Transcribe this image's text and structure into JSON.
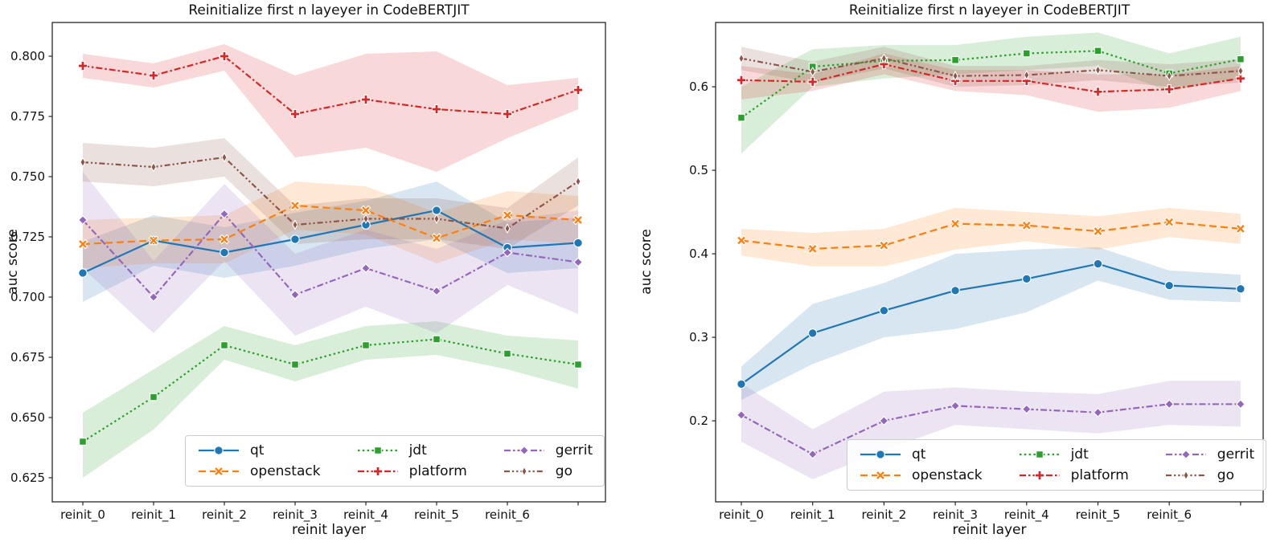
{
  "chart_data": [
    {
      "id": "left",
      "type": "line",
      "title": "Reinitialize first n layeyer in CodeBERTJIT",
      "xlabel": "reinit layer",
      "ylabel": "auc score",
      "x_categories": [
        "reinit_0",
        "reinit_1",
        "reinit_2",
        "reinit_3",
        "reinit_4",
        "reinit_5",
        "reinit_6",
        ""
      ],
      "ytick_values": [
        0.8,
        0.775,
        0.75,
        0.725,
        0.7,
        0.675,
        0.65,
        0.625
      ],
      "ytick_labels": [
        "0.800",
        "0.775",
        "0.750",
        "0.725",
        "0.700",
        "0.675",
        "0.650",
        "0.625"
      ],
      "ylim": [
        0.615,
        0.814
      ],
      "grid": false,
      "legend_position": "lower-center-inside",
      "series": [
        {
          "name": "qt",
          "color": "#1f77b4",
          "line": "solid",
          "marker": "circle",
          "values": [
            0.71,
            0.7235,
            0.7185,
            0.724,
            0.73,
            0.736,
            0.7205,
            0.7225
          ],
          "band_lo": [
            0.698,
            0.713,
            0.708,
            0.713,
            0.72,
            0.724,
            0.71,
            0.712
          ],
          "band_hi": [
            0.723,
            0.734,
            0.729,
            0.735,
            0.74,
            0.748,
            0.731,
            0.733
          ]
        },
        {
          "name": "openstack",
          "color": "#ff7f0e",
          "line": "dashed",
          "marker": "x-filled",
          "values": [
            0.722,
            0.7235,
            0.724,
            0.738,
            0.736,
            0.7245,
            0.734,
            0.732
          ],
          "band_lo": [
            0.712,
            0.714,
            0.714,
            0.728,
            0.726,
            0.714,
            0.724,
            0.722
          ],
          "band_hi": [
            0.732,
            0.733,
            0.734,
            0.748,
            0.746,
            0.735,
            0.744,
            0.742
          ]
        },
        {
          "name": "jdt",
          "color": "#2ca02c",
          "line": "dotted",
          "marker": "square",
          "values": [
            0.64,
            0.6585,
            0.68,
            0.672,
            0.68,
            0.6825,
            0.6765,
            0.672
          ],
          "band_lo": [
            0.625,
            0.645,
            0.674,
            0.665,
            0.674,
            0.676,
            0.67,
            0.662
          ],
          "band_hi": [
            0.652,
            0.67,
            0.688,
            0.68,
            0.688,
            0.69,
            0.684,
            0.682
          ]
        },
        {
          "name": "platform",
          "color": "#d62728",
          "line": "dashdot",
          "marker": "plus-filled",
          "values": [
            0.796,
            0.792,
            0.8,
            0.776,
            0.782,
            0.778,
            0.776,
            0.786
          ],
          "band_lo": [
            0.791,
            0.787,
            0.794,
            0.758,
            0.762,
            0.752,
            0.766,
            0.778
          ],
          "band_hi": [
            0.801,
            0.797,
            0.805,
            0.792,
            0.801,
            0.802,
            0.788,
            0.791
          ]
        },
        {
          "name": "gerrit",
          "color": "#9467bd",
          "line": "dashdot",
          "marker": "diamond",
          "values": [
            0.732,
            0.7,
            0.7345,
            0.701,
            0.712,
            0.7025,
            0.7185,
            0.7145
          ],
          "band_lo": [
            0.712,
            0.685,
            0.715,
            0.684,
            0.696,
            0.685,
            0.705,
            0.693
          ],
          "band_hi": [
            0.752,
            0.715,
            0.747,
            0.718,
            0.728,
            0.72,
            0.732,
            0.736
          ]
        },
        {
          "name": "go",
          "color": "#8c564b",
          "line": "dashdotdot",
          "marker": "thin-diamond",
          "values": [
            0.756,
            0.754,
            0.758,
            0.73,
            0.7325,
            0.7325,
            0.7285,
            0.748
          ],
          "band_lo": [
            0.748,
            0.746,
            0.75,
            0.722,
            0.724,
            0.724,
            0.72,
            0.738
          ],
          "band_hi": [
            0.764,
            0.762,
            0.766,
            0.738,
            0.741,
            0.741,
            0.737,
            0.758
          ]
        }
      ]
    },
    {
      "id": "right",
      "type": "line",
      "title": "Reinitialize first n layeyer in CodeBERTJIT",
      "xlabel": "reinit layer",
      "ylabel": "auc score",
      "x_categories": [
        "reinit_0",
        "reinit_1",
        "reinit_2",
        "reinit_3",
        "reinit_4",
        "reinit_5",
        "reinit_6",
        ""
      ],
      "ytick_values": [
        0.6,
        0.5,
        0.4,
        0.3,
        0.2
      ],
      "ytick_labels": [
        "0.6",
        "0.5",
        "0.4",
        "0.3",
        "0.2"
      ],
      "ylim": [
        0.103,
        0.677
      ],
      "grid": false,
      "legend_position": "lower-center-inside",
      "series": [
        {
          "name": "qt",
          "color": "#1f77b4",
          "line": "solid",
          "marker": "circle",
          "values": [
            0.244,
            0.305,
            0.332,
            0.356,
            0.37,
            0.388,
            0.362,
            0.358
          ],
          "band_lo": [
            0.225,
            0.268,
            0.3,
            0.31,
            0.33,
            0.368,
            0.345,
            0.342
          ],
          "band_hi": [
            0.265,
            0.34,
            0.365,
            0.4,
            0.405,
            0.408,
            0.38,
            0.375
          ]
        },
        {
          "name": "openstack",
          "color": "#ff7f0e",
          "line": "dashed",
          "marker": "x-filled",
          "values": [
            0.416,
            0.406,
            0.41,
            0.436,
            0.434,
            0.427,
            0.438,
            0.43
          ],
          "band_lo": [
            0.398,
            0.385,
            0.385,
            0.405,
            0.415,
            0.405,
            0.42,
            0.412
          ],
          "band_hi": [
            0.43,
            0.425,
            0.43,
            0.455,
            0.45,
            0.445,
            0.455,
            0.448
          ]
        },
        {
          "name": "jdt",
          "color": "#2ca02c",
          "line": "dotted",
          "marker": "square",
          "values": [
            0.563,
            0.624,
            0.631,
            0.632,
            0.64,
            0.643,
            0.616,
            0.633
          ],
          "band_lo": [
            0.52,
            0.6,
            0.61,
            0.615,
            0.62,
            0.625,
            0.595,
            0.61
          ],
          "band_hi": [
            0.6,
            0.645,
            0.65,
            0.65,
            0.66,
            0.665,
            0.64,
            0.66
          ]
        },
        {
          "name": "platform",
          "color": "#d62728",
          "line": "dashdot",
          "marker": "plus-filled",
          "values": [
            0.608,
            0.606,
            0.627,
            0.607,
            0.607,
            0.594,
            0.597,
            0.61
          ],
          "band_lo": [
            0.585,
            0.595,
            0.615,
            0.595,
            0.59,
            0.57,
            0.575,
            0.595
          ],
          "band_hi": [
            0.625,
            0.615,
            0.64,
            0.62,
            0.62,
            0.615,
            0.615,
            0.625
          ]
        },
        {
          "name": "gerrit",
          "color": "#9467bd",
          "line": "dashdot",
          "marker": "diamond",
          "values": [
            0.207,
            0.16,
            0.2,
            0.218,
            0.214,
            0.21,
            0.22,
            0.22
          ],
          "band_lo": [
            0.175,
            0.13,
            0.165,
            0.195,
            0.19,
            0.185,
            0.195,
            0.193
          ],
          "band_hi": [
            0.245,
            0.19,
            0.235,
            0.24,
            0.235,
            0.232,
            0.248,
            0.248
          ]
        },
        {
          "name": "go",
          "color": "#8c564b",
          "line": "dashdotdot",
          "marker": "thin-diamond",
          "values": [
            0.634,
            0.618,
            0.634,
            0.613,
            0.614,
            0.62,
            0.613,
            0.619
          ],
          "band_lo": [
            0.62,
            0.605,
            0.622,
            0.6,
            0.602,
            0.608,
            0.6,
            0.605
          ],
          "band_hi": [
            0.648,
            0.63,
            0.648,
            0.625,
            0.625,
            0.632,
            0.627,
            0.633
          ]
        }
      ]
    }
  ],
  "legend": {
    "labels": [
      "qt",
      "openstack",
      "jdt",
      "platform",
      "gerrit",
      "go"
    ]
  }
}
